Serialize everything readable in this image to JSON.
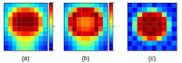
{
  "chart_data": [
    {
      "type": "heatmap",
      "title": "(a)",
      "tick_labels": false,
      "xlim": [
        0,
        10
      ],
      "ylim": [
        0,
        10
      ],
      "zlim": [
        0,
        1
      ],
      "colorbar_ticks": [
        0,
        0.5,
        1
      ],
      "cells": [
        [
          0.3,
          0.3,
          0.35,
          0.4,
          0.45,
          0.45,
          0.4,
          0.35,
          0.3,
          0.3
        ],
        [
          0.3,
          0.4,
          0.6,
          0.75,
          0.8,
          0.8,
          0.75,
          0.6,
          0.4,
          0.3
        ],
        [
          0.35,
          0.6,
          0.85,
          0.95,
          0.95,
          0.95,
          0.95,
          0.85,
          0.6,
          0.35
        ],
        [
          0.4,
          0.75,
          0.95,
          1,
          1,
          1,
          1,
          0.95,
          0.75,
          0.4
        ],
        [
          0.4,
          0.75,
          0.95,
          1,
          1,
          1,
          1,
          0.95,
          0.75,
          0.4
        ],
        [
          0.35,
          0.65,
          0.9,
          0.95,
          0.95,
          0.95,
          0.95,
          0.9,
          0.65,
          0.35
        ],
        [
          0.3,
          0.45,
          0.7,
          0.8,
          0.85,
          0.85,
          0.8,
          0.7,
          0.45,
          0.3
        ],
        [
          0.25,
          0.3,
          0.45,
          0.6,
          0.65,
          0.65,
          0.6,
          0.45,
          0.3,
          0.25
        ],
        [
          0.2,
          0.25,
          0.35,
          0.5,
          0.55,
          0.55,
          0.5,
          0.35,
          0.25,
          0.2
        ],
        [
          0.15,
          0.2,
          0.3,
          0.45,
          0.5,
          0.5,
          0.45,
          0.3,
          0.2,
          0.15
        ]
      ]
    },
    {
      "type": "heatmap",
      "title": "(b)",
      "tick_labels": false,
      "xlim": [
        0,
        10
      ],
      "ylim": [
        0,
        10
      ],
      "zlim": [
        0,
        1
      ],
      "colorbar_ticks": [
        0,
        0.5,
        1
      ],
      "cells": [
        [
          0.25,
          0.3,
          0.35,
          0.4,
          0.45,
          0.45,
          0.4,
          0.35,
          0.3,
          0.25
        ],
        [
          0.3,
          0.45,
          0.7,
          0.9,
          0.95,
          0.95,
          0.9,
          0.7,
          0.45,
          0.3
        ],
        [
          0.35,
          0.75,
          1,
          0.95,
          0.9,
          0.9,
          0.95,
          1,
          0.75,
          0.35
        ],
        [
          0.4,
          0.9,
          0.95,
          0.8,
          0.75,
          0.75,
          0.8,
          0.95,
          0.9,
          0.4
        ],
        [
          0.4,
          0.9,
          0.95,
          0.8,
          0.75,
          0.75,
          0.8,
          0.95,
          0.9,
          0.4
        ],
        [
          0.35,
          0.8,
          1,
          0.85,
          0.8,
          0.8,
          0.85,
          1,
          0.8,
          0.35
        ],
        [
          0.3,
          0.5,
          0.85,
          0.95,
          0.9,
          0.9,
          0.95,
          0.85,
          0.5,
          0.3
        ],
        [
          0.25,
          0.3,
          0.5,
          0.65,
          0.7,
          0.7,
          0.65,
          0.5,
          0.3,
          0.25
        ],
        [
          0.2,
          0.25,
          0.35,
          0.5,
          0.55,
          0.55,
          0.5,
          0.35,
          0.25,
          0.2
        ],
        [
          0.15,
          0.2,
          0.3,
          0.4,
          0.45,
          0.45,
          0.4,
          0.3,
          0.2,
          0.15
        ]
      ]
    },
    {
      "type": "heatmap",
      "title": "(c)",
      "tick_labels": false,
      "xlim": [
        0,
        10
      ],
      "ylim": [
        0,
        10
      ],
      "zlim": [
        0,
        1
      ],
      "cells": [
        [
          0.15,
          0.22,
          0.12,
          0.2,
          0.25,
          0.14,
          0.21,
          0.18,
          0.1,
          0.2
        ],
        [
          0.2,
          0.12,
          0.25,
          0.3,
          0.45,
          0.5,
          0.3,
          0.22,
          0.16,
          0.12
        ],
        [
          0.1,
          0.24,
          0.55,
          0.9,
          0.95,
          0.92,
          0.88,
          0.5,
          0.2,
          0.18
        ],
        [
          0.22,
          0.4,
          0.9,
          1,
          0.97,
          1,
          0.95,
          0.88,
          0.35,
          0.14
        ],
        [
          0.14,
          0.5,
          0.95,
          0.98,
          1,
          0.96,
          1,
          0.92,
          0.45,
          0.22
        ],
        [
          0.2,
          0.45,
          0.92,
          1,
          0.95,
          1,
          0.97,
          0.9,
          0.4,
          0.12
        ],
        [
          0.12,
          0.3,
          0.8,
          0.95,
          1,
          0.98,
          0.93,
          0.78,
          0.28,
          0.2
        ],
        [
          0.24,
          0.15,
          0.35,
          0.7,
          0.85,
          0.82,
          0.65,
          0.3,
          0.18,
          0.1
        ],
        [
          0.1,
          0.2,
          0.16,
          0.25,
          0.3,
          0.28,
          0.2,
          0.22,
          0.14,
          0.24
        ],
        [
          0.18,
          0.12,
          0.22,
          0.14,
          0.2,
          0.1,
          0.25,
          0.12,
          0.2,
          0.16
        ]
      ]
    }
  ]
}
